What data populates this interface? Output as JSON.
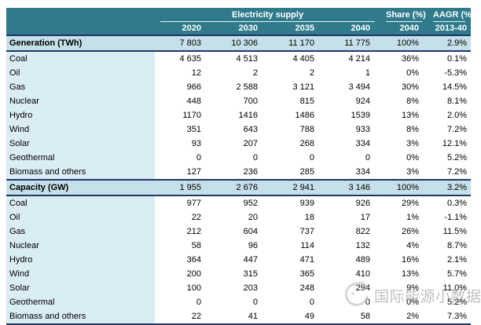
{
  "chart_data": {
    "type": "table",
    "column_groups": [
      {
        "label": "Electricity supply",
        "span": 4
      },
      {
        "label": "Share (%)",
        "span": 1
      },
      {
        "label": "AAGR (%)",
        "span": 1
      }
    ],
    "columns": [
      "2020",
      "2030",
      "2035",
      "2040",
      "2040",
      "2013-40"
    ],
    "rows": [
      {
        "label": "Generation (TWh)",
        "type": "section",
        "values": [
          "7 803",
          "10 306",
          "11 170",
          "11 775",
          "100%",
          "2.9%"
        ]
      },
      {
        "label": "Coal",
        "type": "data",
        "values": [
          "4 635",
          "4 513",
          "4 405",
          "4 214",
          "36%",
          "0.1%"
        ]
      },
      {
        "label": "Oil",
        "type": "data",
        "values": [
          "12",
          "2",
          "2",
          "1",
          "0%",
          "-5.3%"
        ]
      },
      {
        "label": "Gas",
        "type": "data",
        "values": [
          "966",
          "2 588",
          "3 121",
          "3 494",
          "30%",
          "14.5%"
        ]
      },
      {
        "label": "Nuclear",
        "type": "data",
        "values": [
          "448",
          "700",
          "815",
          "924",
          "8%",
          "8.1%"
        ]
      },
      {
        "label": "Hydro",
        "type": "data",
        "values": [
          "1170",
          "1416",
          "1486",
          "1539",
          "13%",
          "2.0%"
        ]
      },
      {
        "label": "Wind",
        "type": "data",
        "values": [
          "351",
          "643",
          "788",
          "933",
          "8%",
          "7.2%"
        ]
      },
      {
        "label": "Solar",
        "type": "data",
        "values": [
          "93",
          "207",
          "268",
          "334",
          "3%",
          "12.1%"
        ]
      },
      {
        "label": "Geothermal",
        "type": "data",
        "values": [
          "0",
          "0",
          "0",
          "0",
          "0%",
          "5.2%"
        ]
      },
      {
        "label": "Biomass and others",
        "type": "data",
        "values": [
          "127",
          "236",
          "285",
          "334",
          "3%",
          "7.2%"
        ]
      },
      {
        "label": "Capacity (GW)",
        "type": "section",
        "values": [
          "1 955",
          "2 676",
          "2 941",
          "3 146",
          "100%",
          "3.2%"
        ]
      },
      {
        "label": "Coal",
        "type": "data",
        "values": [
          "977",
          "952",
          "939",
          "926",
          "29%",
          "0.3%"
        ]
      },
      {
        "label": "Oil",
        "type": "data",
        "values": [
          "22",
          "20",
          "18",
          "17",
          "1%",
          "-1.1%"
        ]
      },
      {
        "label": "Gas",
        "type": "data",
        "values": [
          "212",
          "604",
          "737",
          "822",
          "26%",
          "11.5%"
        ]
      },
      {
        "label": "Nuclear",
        "type": "data",
        "values": [
          "58",
          "96",
          "114",
          "132",
          "4%",
          "8.7%"
        ]
      },
      {
        "label": "Hydro",
        "type": "data",
        "values": [
          "364",
          "447",
          "471",
          "489",
          "16%",
          "2.1%"
        ]
      },
      {
        "label": "Wind",
        "type": "data",
        "values": [
          "200",
          "315",
          "365",
          "410",
          "13%",
          "5.7%"
        ]
      },
      {
        "label": "Solar",
        "type": "data",
        "values": [
          "100",
          "203",
          "248",
          "294",
          "9%",
          "11.0%"
        ]
      },
      {
        "label": "Geothermal",
        "type": "data",
        "values": [
          "0",
          "0",
          "0",
          "0",
          "0%",
          "5.2%"
        ]
      },
      {
        "label": "Biomass and others",
        "type": "data",
        "values": [
          "22",
          "41",
          "49",
          "58",
          "2%",
          "7.3%"
        ]
      }
    ]
  },
  "watermark": {
    "text": "国际能源小数据"
  },
  "colors": {
    "header_teal": "#2F7B8C",
    "section_blue": "#C6E0EA",
    "label_blue": "#DAECF4",
    "border_navy": "#1F3864"
  }
}
